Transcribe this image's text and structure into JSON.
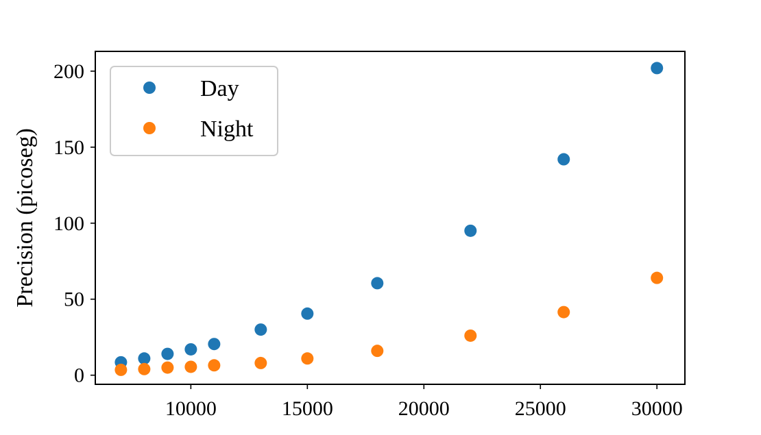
{
  "chart_data": {
    "type": "scatter",
    "title": "",
    "xlabel": "",
    "ylabel": "Precision (picoseg)",
    "xlim": [
      5900,
      31200
    ],
    "ylim": [
      -6,
      213
    ],
    "xticks": [
      10000,
      15000,
      20000,
      25000,
      30000
    ],
    "yticks": [
      0,
      50,
      100,
      150,
      200
    ],
    "grid": false,
    "legend_position": "top-left",
    "x": [
      7000,
      8000,
      9000,
      10000,
      11000,
      13000,
      15000,
      18000,
      22000,
      26000,
      30000
    ],
    "series": [
      {
        "name": "Day",
        "color": "#1f77b4",
        "values": [
          8.5,
          11,
          14,
          17,
          20.5,
          30,
          40.5,
          60.5,
          95,
          142,
          202
        ]
      },
      {
        "name": "Night",
        "color": "#ff7f0e",
        "values": [
          3.5,
          4,
          5,
          5.5,
          6.5,
          8,
          11,
          16,
          26,
          41.5,
          64
        ]
      }
    ]
  }
}
